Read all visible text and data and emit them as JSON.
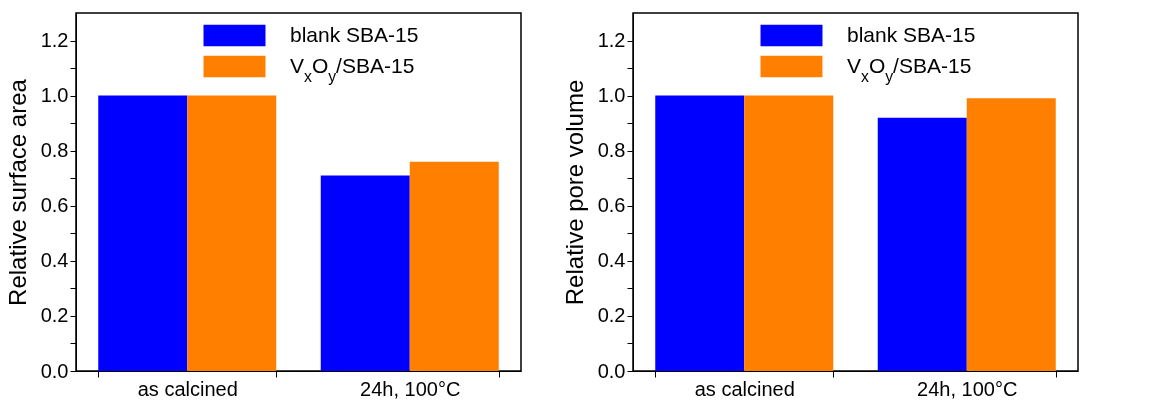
{
  "chart_data": [
    {
      "type": "bar",
      "ylabel": "Relative surface area",
      "categories": [
        "as calcined",
        "24h, 100°C"
      ],
      "series": [
        {
          "name": "blank SBA-15",
          "color": "#0000ff",
          "values": [
            1.0,
            0.71
          ]
        },
        {
          "name": "V$_{x}$O$_{y}$/SBA-15",
          "color": "#ff7f00",
          "values": [
            1.0,
            0.76
          ]
        }
      ],
      "ylim": [
        0,
        1.3
      ],
      "yticks": [
        {
          "value": 0,
          "label": "0.0"
        },
        {
          "value": 0.1,
          "label": null
        },
        {
          "value": 0.2,
          "label": "0.2"
        },
        {
          "value": 0.3,
          "label": null
        },
        {
          "value": 0.4,
          "label": "0.4"
        },
        {
          "value": 0.5,
          "label": null
        },
        {
          "value": 0.6,
          "label": "0.6"
        },
        {
          "value": 0.7,
          "label": null
        },
        {
          "value": 0.8,
          "label": "0.8"
        },
        {
          "value": 0.9,
          "label": null
        },
        {
          "value": 1,
          "label": "1.0"
        },
        {
          "value": 1.1,
          "label": null
        },
        {
          "value": 1.2,
          "label": "1.2"
        }
      ],
      "legend": "top right",
      "grid": false
    },
    {
      "type": "bar",
      "ylabel": "Relative pore volume",
      "categories": [
        "as calcined",
        "24h, 100°C"
      ],
      "series": [
        {
          "name": "blank SBA-15",
          "color": "#0000ff",
          "values": [
            1.0,
            0.92
          ]
        },
        {
          "name": "V$_{x}$O$_{y}$/SBA-15",
          "color": "#ff7f00",
          "values": [
            1.0,
            0.99
          ]
        }
      ],
      "ylim": [
        0,
        1.3
      ],
      "yticks": [
        {
          "value": 0,
          "label": "0.0"
        },
        {
          "value": 0.1,
          "label": null
        },
        {
          "value": 0.2,
          "label": "0.2"
        },
        {
          "value": 0.3,
          "label": null
        },
        {
          "value": 0.4,
          "label": "0.4"
        },
        {
          "value": 0.5,
          "label": null
        },
        {
          "value": 0.6,
          "label": "0.6"
        },
        {
          "value": 0.7,
          "label": null
        },
        {
          "value": 0.8,
          "label": "0.8"
        },
        {
          "value": 0.9,
          "label": null
        },
        {
          "value": 1,
          "label": "1.0"
        },
        {
          "value": 1.1,
          "label": null
        },
        {
          "value": 1.2,
          "label": "1.2"
        }
      ],
      "legend": "top right",
      "grid": false
    }
  ]
}
